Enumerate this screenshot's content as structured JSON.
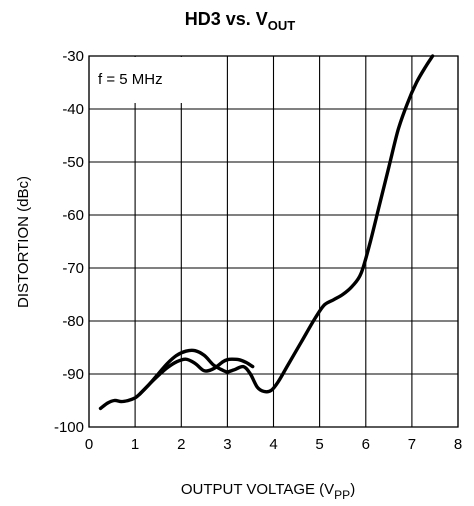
{
  "chart_data": {
    "type": "line",
    "title": {
      "main": "HD3 vs. V",
      "sub": "OUT"
    },
    "xlabel": {
      "main": "OUTPUT VOLTAGE (V",
      "sub": "PP",
      "close": ")"
    },
    "ylabel": "DISTORTION (dBc)",
    "annotation": "f = 5 MHz",
    "xlim": [
      0,
      8
    ],
    "ylim": [
      -100,
      -30
    ],
    "xticks": [
      0,
      1,
      2,
      3,
      4,
      5,
      6,
      7,
      8
    ],
    "xtick_labels": [
      "0",
      "1",
      "2",
      "3",
      "4",
      "5",
      "6",
      "7",
      "8"
    ],
    "yticks": [
      -100,
      -90,
      -80,
      -70,
      -60,
      -50,
      -40,
      -30
    ],
    "ytick_labels": [
      "-100",
      "-90",
      "-80",
      "-70",
      "-60",
      "-50",
      "-40",
      "-30"
    ],
    "grid": true,
    "line_color": "#000000",
    "series": [
      {
        "x": [
          0.25,
          0.4,
          0.55,
          0.7,
          0.85,
          1.0,
          1.1,
          1.3,
          1.5,
          1.7,
          1.9,
          2.1,
          2.3,
          2.5,
          2.7,
          2.9,
          3.0,
          3.15,
          3.35,
          3.5,
          3.65,
          3.8,
          3.95,
          4.1,
          4.3,
          4.6,
          4.9,
          5.1,
          5.3,
          5.5,
          5.7,
          5.9,
          6.1,
          6.3,
          6.5,
          6.7,
          6.9,
          7.1,
          7.3,
          7.45
        ],
        "y": [
          -96.5,
          -95.5,
          -95.0,
          -95.2,
          -95.0,
          -94.5,
          -93.8,
          -92.0,
          -90.0,
          -88.0,
          -86.5,
          -85.7,
          -85.6,
          -86.5,
          -88.3,
          -89.3,
          -89.6,
          -89.2,
          -88.6,
          -90.0,
          -92.5,
          -93.3,
          -93.1,
          -91.5,
          -88.5,
          -84.0,
          -79.5,
          -77.0,
          -76.0,
          -75.0,
          -73.5,
          -71.0,
          -65.0,
          -58.0,
          -51.0,
          -44.0,
          -39.0,
          -35.0,
          -32.0,
          -30.0
        ]
      },
      {
        "x": [
          1.1,
          1.3,
          1.5,
          1.7,
          1.9,
          2.1,
          2.3,
          2.5,
          2.7,
          2.9,
          3.0,
          3.1,
          3.25,
          3.4,
          3.55
        ],
        "y": [
          -93.8,
          -92.0,
          -90.3,
          -88.8,
          -87.7,
          -87.2,
          -88.0,
          -89.4,
          -89.0,
          -87.7,
          -87.3,
          -87.2,
          -87.3,
          -87.8,
          -88.6
        ]
      }
    ]
  }
}
